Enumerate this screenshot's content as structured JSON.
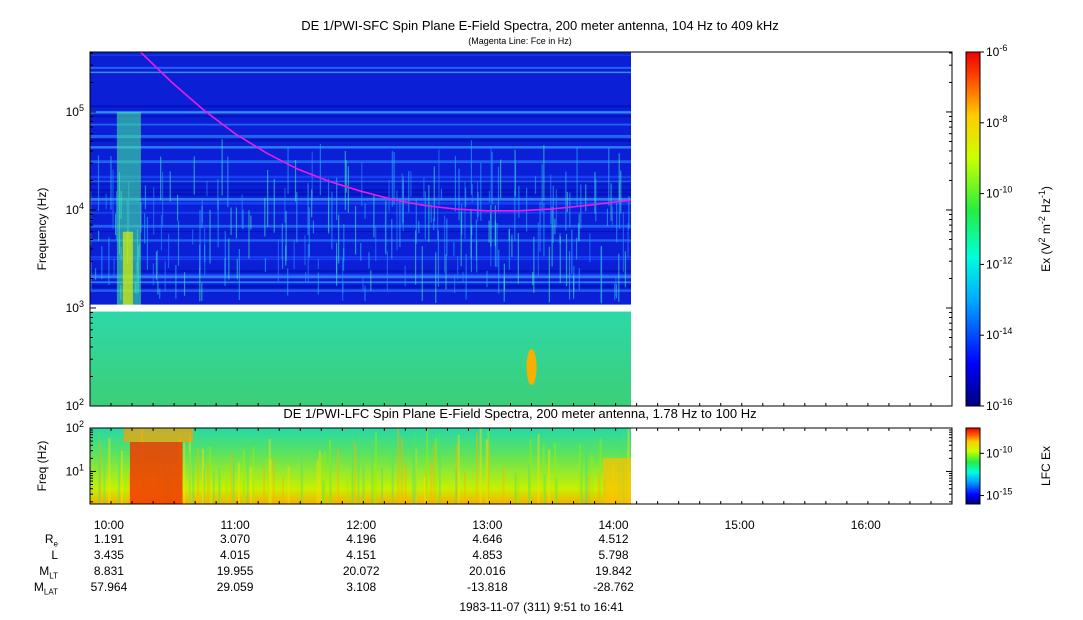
{
  "chart_data": [
    {
      "type": "heatmap",
      "title": "DE 1/PWI-SFC  Spin Plane E-Field Spectra, 200 meter antenna, 104 Hz to 409 kHz",
      "subtitle": "(Magenta Line: Fce in Hz)",
      "ylabel": "Frequency (Hz)",
      "yscale": "log",
      "ylim": [
        100,
        409000
      ],
      "yticks": [
        {
          "value": 100,
          "label": "10",
          "exp": "2"
        },
        {
          "value": 1000,
          "label": "10",
          "exp": "3"
        },
        {
          "value": 10000,
          "label": "10",
          "exp": "4"
        },
        {
          "value": 100000,
          "label": "10",
          "exp": "5"
        }
      ],
      "colorbar": {
        "label_parts": [
          "Ex (V",
          "2",
          " m",
          "-2",
          " Hz",
          "-1",
          ")"
        ],
        "scale": "log",
        "range": [
          1e-16,
          1e-06
        ],
        "ticks": [
          {
            "value": 1e-16,
            "label": "10",
            "exp": "-16"
          },
          {
            "value": 1e-14,
            "label": "10",
            "exp": "-14"
          },
          {
            "value": 1e-12,
            "label": "10",
            "exp": "-12"
          },
          {
            "value": 1e-10,
            "label": "10",
            "exp": "-10"
          },
          {
            "value": 1e-08,
            "label": "10",
            "exp": "-8"
          },
          {
            "value": 1e-06,
            "label": "10",
            "exp": "-6"
          }
        ]
      },
      "data_coverage": {
        "start": "09:51",
        "end": "14:13"
      },
      "gap_band_hz": [
        920,
        1080
      ],
      "fce_line": {
        "color": "#e81ee8",
        "points": [
          [
            "10:15",
            409000
          ],
          [
            "10:30",
            200000
          ],
          [
            "10:45",
            105000
          ],
          [
            "11:00",
            60000
          ],
          [
            "11:15",
            38000
          ],
          [
            "11:30",
            26000
          ],
          [
            "11:45",
            19500
          ],
          [
            "12:00",
            15500
          ],
          [
            "12:15",
            12800
          ],
          [
            "12:30",
            11100
          ],
          [
            "12:45",
            10200
          ],
          [
            "13:00",
            9800
          ],
          [
            "13:15",
            9800
          ],
          [
            "13:30",
            10200
          ],
          [
            "13:45",
            11000
          ],
          [
            "14:00",
            12000
          ],
          [
            "14:12",
            12800
          ]
        ]
      }
    },
    {
      "type": "heatmap",
      "title": "DE 1/PWI-LFC  Spin Plane E-Field Spectra, 200 meter antenna, 1.78 Hz to 100 Hz",
      "ylabel": "Freq (Hz)",
      "yscale": "log",
      "ylim": [
        1.78,
        100
      ],
      "yticks": [
        {
          "value": 10,
          "label": "10",
          "exp": "1"
        },
        {
          "value": 100,
          "label": "10",
          "exp": "2"
        }
      ],
      "colorbar": {
        "label": "LFC Ex",
        "scale": "log",
        "range": [
          1e-16,
          1e-07
        ],
        "ticks": [
          {
            "value": 1e-15,
            "label": "10",
            "exp": "-15"
          },
          {
            "value": 1e-10,
            "label": "10",
            "exp": "-10"
          }
        ]
      },
      "data_coverage": {
        "start": "09:51",
        "end": "14:13"
      }
    }
  ],
  "time_axis": {
    "range": [
      "09:51",
      "16:41"
    ],
    "tick_labels": [
      "10:00",
      "11:00",
      "12:00",
      "13:00",
      "14:00",
      "15:00",
      "16:00"
    ]
  },
  "ephemeris": {
    "rows": [
      {
        "label": "R",
        "sub": "e",
        "values": [
          "1.191",
          "3.070",
          "4.196",
          "4.646",
          "4.512"
        ]
      },
      {
        "label": "L",
        "sub": "",
        "values": [
          "3.435",
          "4.015",
          "4.151",
          "4.853",
          "5.798"
        ]
      },
      {
        "label": "M",
        "sub": "LT",
        "values": [
          "8.831",
          "19.955",
          "20.072",
          "20.016",
          "19.842"
        ]
      },
      {
        "label": "M",
        "sub": "LAT",
        "values": [
          "57.964",
          "29.059",
          "3.108",
          "-13.818",
          "-28.762"
        ]
      }
    ]
  },
  "footer": "1983-11-07 (311) 9:51 to 16:41"
}
